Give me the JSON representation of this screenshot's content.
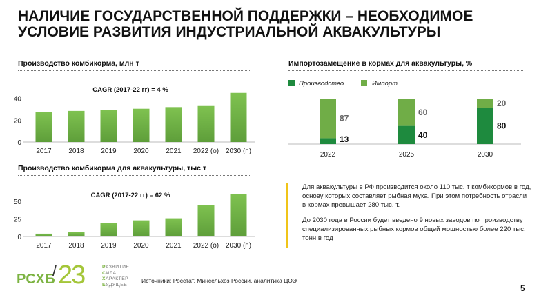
{
  "page": {
    "title_line1": "НАЛИЧИЕ ГОСУДАРСТВЕННОЙ ПОДДЕРЖКИ – НЕОБХОДИМОЕ",
    "title_line2": "УСЛОВИЕ РАЗВИТИЯ ИНДУСТРИАЛЬНОЙ АКВАКУЛЬТУРЫ",
    "page_number": "5",
    "sources": "Источники: Росстат, Минсельхоз России, аналитика ЦОЭ"
  },
  "logo": {
    "word": "РСХБ",
    "slash": "/",
    "number": "23",
    "tagline": [
      {
        "first": "Р",
        "rest": "АЗВИТИЕ"
      },
      {
        "first": "С",
        "rest": "ИЛА"
      },
      {
        "first": "Х",
        "rest": "АРАКТЕР"
      },
      {
        "first": "Б",
        "rest": "УДУЩЕЕ"
      }
    ]
  },
  "notes": {
    "paragraph1": "Для аквакультуры в РФ производится около 110 тыс. т комбикормов в год, основу которых составляет рыбная мука. При этом потребность отрасли в кормах превышает 280 тыс. т.",
    "paragraph2": "До 2030 года в России будет введено 9 новых заводов по производству специализированных рыбных кормов общей мощностью более 220 тыс. тонн в год"
  },
  "colors": {
    "bar_light": "#70ad47",
    "bar_dark": "#1e8a3e",
    "accent_yellow": "#f0c419"
  },
  "chart_data": [
    {
      "type": "bar",
      "title": "Производство комбикорма, млн т",
      "annotation": "CAGR (2017-22 гг) = 4 %",
      "categories": [
        "2017",
        "2018",
        "2019",
        "2020",
        "2021",
        "2022 (о)",
        "2030 (п)"
      ],
      "values": [
        27.5,
        28.5,
        29.5,
        30.5,
        32,
        33,
        45
      ],
      "ylim": [
        0,
        48
      ],
      "yticks": [
        0,
        20,
        40
      ]
    },
    {
      "type": "bar",
      "title": "Производство комбикорма для аквакультуры, тыс т",
      "annotation": "CAGR (2017-22 гг) = 62 %",
      "categories": [
        "2017",
        "2018",
        "2019",
        "2020",
        "2021",
        "2022 (о)",
        "2030 (п)"
      ],
      "values": [
        4,
        6,
        19,
        23,
        26,
        45,
        61
      ],
      "ylim": [
        0,
        63
      ],
      "yticks": [
        0,
        25,
        50
      ]
    },
    {
      "type": "bar",
      "stacked": true,
      "title": "Импортозамещение в кормах для аквакультуры, %",
      "legend": "top-left",
      "categories": [
        "2022",
        "2025",
        "2030"
      ],
      "series": [
        {
          "name": "Производство",
          "values": [
            13,
            40,
            80
          ]
        },
        {
          "name": "Импорт",
          "values": [
            87,
            60,
            20
          ]
        }
      ],
      "ylim": [
        0,
        100
      ]
    }
  ]
}
